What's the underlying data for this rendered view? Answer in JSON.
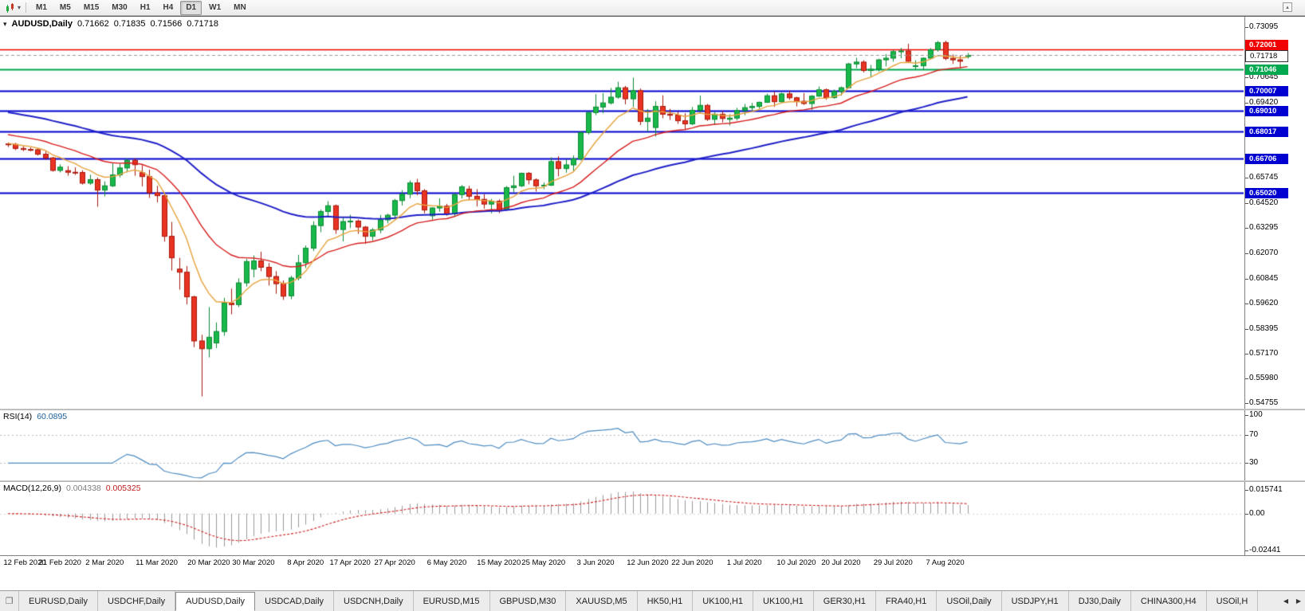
{
  "icons": {
    "collapse": "▾",
    "chart_type_caret": "▾",
    "windows": "❐",
    "tab_scroll_left": "◀",
    "tab_scroll_right": "▶",
    "corner": "▴"
  },
  "toolbar": {
    "timeframes": [
      "M1",
      "M5",
      "M15",
      "M30",
      "H1",
      "H4",
      "D1",
      "W1",
      "MN"
    ],
    "active_timeframe": "D1"
  },
  "chart": {
    "symbol": "AUDUSD,Daily",
    "open": "0.71662",
    "high": "0.71835",
    "low": "0.71566",
    "close": "0.71718"
  },
  "main_pane": {
    "axis_labels": [
      "0.73095",
      "0.70645",
      "0.69420",
      "0.65745",
      "0.64520",
      "0.63295",
      "0.62070",
      "0.60845",
      "0.59620",
      "0.58395",
      "0.57170",
      "0.55980",
      "0.54755"
    ],
    "hlines": [
      {
        "price": 0.72001,
        "label": "0.72001",
        "color": "#f00000",
        "style": "solid",
        "width": 1.4
      },
      {
        "price": 0.71718,
        "label": "0.71718",
        "color": "#999999",
        "style": "dashed",
        "width": 1,
        "current": true
      },
      {
        "price": 0.71046,
        "label": "0.71046",
        "color": "#00a84f",
        "style": "solid",
        "width": 2
      },
      {
        "price": 0.70007,
        "label": "0.70007",
        "color": "#0000d0",
        "style": "solid",
        "width": 2
      },
      {
        "price": 0.6901,
        "label": "0.69010",
        "color": "#0000d0",
        "style": "solid",
        "width": 2
      },
      {
        "price": 0.68017,
        "label": "0.68017",
        "color": "#0000d0",
        "style": "solid",
        "width": 2
      },
      {
        "price": 0.66706,
        "label": "0.66706",
        "color": "#0000d0",
        "style": "solid",
        "width": 2
      },
      {
        "price": 0.6502,
        "label": "0.65020",
        "color": "#0000d0",
        "style": "solid",
        "width": 2
      }
    ]
  },
  "chart_data": {
    "type": "candlestick",
    "symbol": "AUDUSD",
    "timeframe": "Daily",
    "price_range": [
      0.545,
      0.736
    ],
    "up_color": "#18b84b",
    "up_border": "#0c8a33",
    "down_color": "#ea3423",
    "down_border": "#a8170b",
    "candles": [
      [
        0.674,
        0.6748,
        0.6725,
        0.6738
      ],
      [
        0.6738,
        0.6745,
        0.671,
        0.6718
      ],
      [
        0.6718,
        0.673,
        0.6705,
        0.6713
      ],
      [
        0.6713,
        0.6723,
        0.6705,
        0.6712
      ],
      [
        0.6712,
        0.6719,
        0.6683,
        0.669
      ],
      [
        0.669,
        0.6703,
        0.6663,
        0.6672
      ],
      [
        0.6672,
        0.6677,
        0.6605,
        0.6611
      ],
      [
        0.6611,
        0.664,
        0.6601,
        0.6627
      ],
      [
        0.661,
        0.6632,
        0.6585,
        0.6602
      ],
      [
        0.6602,
        0.6626,
        0.6589,
        0.6601
      ],
      [
        0.6601,
        0.6612,
        0.6542,
        0.6549
      ],
      [
        0.6549,
        0.659,
        0.6541,
        0.6566
      ],
      [
        0.6566,
        0.6576,
        0.6434,
        0.6515
      ],
      [
        0.6515,
        0.6558,
        0.6485,
        0.6536
      ],
      [
        0.6536,
        0.6646,
        0.653,
        0.6589
      ],
      [
        0.6589,
        0.6645,
        0.6577,
        0.6623
      ],
      [
        0.6623,
        0.6668,
        0.6601,
        0.666
      ],
      [
        0.666,
        0.6671,
        0.6585,
        0.6639
      ],
      [
        0.66,
        0.6637,
        0.6533,
        0.6581
      ],
      [
        0.6581,
        0.6615,
        0.6477,
        0.6502
      ],
      [
        0.6502,
        0.6536,
        0.6455,
        0.6488
      ],
      [
        0.6488,
        0.6497,
        0.6264,
        0.629
      ],
      [
        0.629,
        0.636,
        0.6123,
        0.6185
      ],
      [
        0.613,
        0.6185,
        0.603,
        0.6115
      ],
      [
        0.6115,
        0.6145,
        0.5958,
        0.5995
      ],
      [
        0.5995,
        0.6,
        0.575,
        0.578
      ],
      [
        0.578,
        0.581,
        0.551,
        0.5742
      ],
      [
        0.5742,
        0.5945,
        0.57,
        0.5798
      ],
      [
        0.577,
        0.587,
        0.5745,
        0.5826
      ],
      [
        0.5826,
        0.599,
        0.5805,
        0.5964
      ],
      [
        0.5964,
        0.6035,
        0.591,
        0.5957
      ],
      [
        0.5957,
        0.6085,
        0.5945,
        0.6063
      ],
      [
        0.6063,
        0.618,
        0.6045,
        0.6167
      ],
      [
        0.613,
        0.6197,
        0.609,
        0.617
      ],
      [
        0.617,
        0.6215,
        0.612,
        0.6139
      ],
      [
        0.6139,
        0.616,
        0.605,
        0.6094
      ],
      [
        0.6094,
        0.612,
        0.601,
        0.6059
      ],
      [
        0.6059,
        0.6075,
        0.598,
        0.5998
      ],
      [
        0.6,
        0.6098,
        0.5983,
        0.6087
      ],
      [
        0.6087,
        0.62,
        0.6075,
        0.6161
      ],
      [
        0.6161,
        0.6245,
        0.6135,
        0.6232
      ],
      [
        0.6232,
        0.6363,
        0.6218,
        0.6342
      ],
      [
        0.6342,
        0.642,
        0.631,
        0.6411
      ],
      [
        0.6411,
        0.6461,
        0.6385,
        0.6439
      ],
      [
        0.6439,
        0.6445,
        0.6302,
        0.6323
      ],
      [
        0.6323,
        0.638,
        0.6265,
        0.6362
      ],
      [
        0.6362,
        0.6395,
        0.633,
        0.6364
      ],
      [
        0.6364,
        0.6372,
        0.6302,
        0.6335
      ],
      [
        0.6335,
        0.634,
        0.6253,
        0.629
      ],
      [
        0.629,
        0.633,
        0.627,
        0.6321
      ],
      [
        0.6321,
        0.6394,
        0.6305,
        0.637
      ],
      [
        0.637,
        0.64,
        0.6353,
        0.6393
      ],
      [
        0.6393,
        0.6472,
        0.6375,
        0.6464
      ],
      [
        0.6464,
        0.6515,
        0.644,
        0.6495
      ],
      [
        0.6495,
        0.6562,
        0.6475,
        0.655
      ],
      [
        0.655,
        0.657,
        0.649,
        0.6512
      ],
      [
        0.6512,
        0.652,
        0.6402,
        0.6418
      ],
      [
        0.639,
        0.6432,
        0.6372,
        0.6428
      ],
      [
        0.6428,
        0.6475,
        0.641,
        0.6437
      ],
      [
        0.6437,
        0.6448,
        0.639,
        0.6399
      ],
      [
        0.6399,
        0.65,
        0.6385,
        0.6493
      ],
      [
        0.6493,
        0.654,
        0.6475,
        0.6531
      ],
      [
        0.652,
        0.6536,
        0.6465,
        0.6485
      ],
      [
        0.6485,
        0.652,
        0.6435,
        0.647
      ],
      [
        0.647,
        0.6495,
        0.6425,
        0.6447
      ],
      [
        0.6447,
        0.6472,
        0.6402,
        0.6461
      ],
      [
        0.6461,
        0.647,
        0.6403,
        0.6414
      ],
      [
        0.642,
        0.6535,
        0.6415,
        0.6527
      ],
      [
        0.6527,
        0.6585,
        0.6505,
        0.6536
      ],
      [
        0.6536,
        0.66,
        0.653,
        0.6597
      ],
      [
        0.6597,
        0.6603,
        0.6543,
        0.6565
      ],
      [
        0.6565,
        0.6572,
        0.6508,
        0.6536
      ],
      [
        0.6536,
        0.6552,
        0.652,
        0.6539
      ],
      [
        0.6539,
        0.6675,
        0.6535,
        0.6654
      ],
      [
        0.6654,
        0.668,
        0.6582,
        0.662
      ],
      [
        0.662,
        0.6666,
        0.66,
        0.6638
      ],
      [
        0.6638,
        0.6684,
        0.6608,
        0.6667
      ],
      [
        0.6667,
        0.68,
        0.666,
        0.6796
      ],
      [
        0.6796,
        0.6897,
        0.6786,
        0.6893
      ],
      [
        0.6893,
        0.6983,
        0.688,
        0.692
      ],
      [
        0.692,
        0.6988,
        0.689,
        0.694
      ],
      [
        0.694,
        0.7013,
        0.6932,
        0.6968
      ],
      [
        0.6968,
        0.7043,
        0.696,
        0.7014
      ],
      [
        0.7014,
        0.7023,
        0.6933,
        0.696
      ],
      [
        0.696,
        0.7063,
        0.692,
        0.7
      ],
      [
        0.7,
        0.701,
        0.6832,
        0.685
      ],
      [
        0.685,
        0.691,
        0.68,
        0.6866
      ],
      [
        0.682,
        0.6948,
        0.6776,
        0.6923
      ],
      [
        0.6923,
        0.6977,
        0.6865,
        0.6885
      ],
      [
        0.6885,
        0.6911,
        0.6857,
        0.688
      ],
      [
        0.688,
        0.6898,
        0.6838,
        0.6853
      ],
      [
        0.6853,
        0.689,
        0.681,
        0.6838
      ],
      [
        0.6838,
        0.692,
        0.6832,
        0.6904
      ],
      [
        0.6904,
        0.6976,
        0.689,
        0.6928
      ],
      [
        0.6928,
        0.6935,
        0.6852,
        0.686
      ],
      [
        0.686,
        0.6895,
        0.6832,
        0.6885
      ],
      [
        0.6885,
        0.69,
        0.6845,
        0.6864
      ],
      [
        0.686,
        0.6885,
        0.683,
        0.6866
      ],
      [
        0.6866,
        0.6916,
        0.6855,
        0.6903
      ],
      [
        0.6903,
        0.6935,
        0.688,
        0.6917
      ],
      [
        0.6917,
        0.694,
        0.6902,
        0.6923
      ],
      [
        0.6923,
        0.6946,
        0.6912,
        0.6943
      ],
      [
        0.6943,
        0.6985,
        0.694,
        0.6975
      ],
      [
        0.6975,
        0.6995,
        0.6921,
        0.6946
      ],
      [
        0.6946,
        0.699,
        0.694,
        0.6984
      ],
      [
        0.6984,
        0.7,
        0.6955,
        0.6965
      ],
      [
        0.6965,
        0.697,
        0.6923,
        0.6948
      ],
      [
        0.6948,
        0.6988,
        0.693,
        0.6937
      ],
      [
        0.6937,
        0.6978,
        0.6906,
        0.6973
      ],
      [
        0.6973,
        0.702,
        0.697,
        0.7004
      ],
      [
        0.7004,
        0.701,
        0.6955,
        0.6966
      ],
      [
        0.6966,
        0.7005,
        0.696,
        0.6996
      ],
      [
        0.6996,
        0.702,
        0.6975,
        0.7014
      ],
      [
        0.7014,
        0.7135,
        0.701,
        0.713
      ],
      [
        0.713,
        0.716,
        0.711,
        0.7139
      ],
      [
        0.7139,
        0.7148,
        0.7088,
        0.7098
      ],
      [
        0.7098,
        0.7125,
        0.7064,
        0.7104
      ],
      [
        0.7104,
        0.7155,
        0.7093,
        0.715
      ],
      [
        0.715,
        0.7178,
        0.7118,
        0.7158
      ],
      [
        0.7158,
        0.7198,
        0.7141,
        0.719
      ],
      [
        0.719,
        0.7208,
        0.7158,
        0.7193
      ],
      [
        0.7193,
        0.7228,
        0.7135,
        0.7143
      ],
      [
        0.712,
        0.7148,
        0.7102,
        0.7121
      ],
      [
        0.7121,
        0.7162,
        0.71,
        0.7158
      ],
      [
        0.7158,
        0.7207,
        0.7153,
        0.7199
      ],
      [
        0.7199,
        0.7242,
        0.719,
        0.7234
      ],
      [
        0.7234,
        0.7243,
        0.7148,
        0.7157
      ],
      [
        0.7157,
        0.7176,
        0.713,
        0.715
      ],
      [
        0.715,
        0.7172,
        0.7109,
        0.7143
      ],
      [
        0.71662,
        0.71835,
        0.71566,
        0.71718
      ]
    ],
    "moving_averages": [
      {
        "name": "ema-slow",
        "period": 55,
        "seed": 0.69,
        "color": "#2020c8",
        "width": 2
      },
      {
        "name": "ema-mid",
        "period": 21,
        "seed": 0.679,
        "color": "#d81f1f",
        "width": 1.4
      },
      {
        "name": "ema-fast",
        "period": 8,
        "seed": 0.6745,
        "color": "#e8a33d",
        "width": 1.4
      }
    ],
    "date_ticks": [
      {
        "label": "12 Feb 2020",
        "i": 0
      },
      {
        "label": "21 Feb 2020",
        "i": 7
      },
      {
        "label": "2 Mar 2020",
        "i": 13
      },
      {
        "label": "11 Mar 2020",
        "i": 20
      },
      {
        "label": "20 Mar 2020",
        "i": 27
      },
      {
        "label": "30 Mar 2020",
        "i": 33
      },
      {
        "label": "8 Apr 2020",
        "i": 40
      },
      {
        "label": "17 Apr 2020",
        "i": 46
      },
      {
        "label": "27 Apr 2020",
        "i": 52
      },
      {
        "label": "6 May 2020",
        "i": 59
      },
      {
        "label": "15 May 2020",
        "i": 66
      },
      {
        "label": "25 May 2020",
        "i": 72
      },
      {
        "label": "3 Jun 2020",
        "i": 79
      },
      {
        "label": "12 Jun 2020",
        "i": 86
      },
      {
        "label": "22 Jun 2020",
        "i": 92
      },
      {
        "label": "1 Jul 2020",
        "i": 99
      },
      {
        "label": "10 Jul 2020",
        "i": 106
      },
      {
        "label": "20 Jul 2020",
        "i": 112
      },
      {
        "label": "29 Jul 2020",
        "i": 119
      },
      {
        "label": "7 Aug 2020",
        "i": 126
      }
    ],
    "indicators": {
      "rsi": {
        "label": "RSI(14)",
        "value": "60.0895",
        "period": 14,
        "color": "#4e8cc2",
        "levels": [
          70,
          30
        ],
        "axis_labels": [
          "100",
          "70",
          "30"
        ]
      },
      "macd": {
        "label": "MACD(12,26,9)",
        "value_main": "0.004338",
        "value_signal": "0.005325",
        "fast": 12,
        "slow": 26,
        "signal_period": 9,
        "hist_color": "#9a9a9a",
        "signal_color": "#d02020",
        "axis_labels": [
          "0.015741",
          "0.00",
          "-0.02441"
        ]
      }
    }
  },
  "tabs": {
    "items": [
      "EURUSD,Daily",
      "USDCHF,Daily",
      "AUDUSD,Daily",
      "USDCAD,Daily",
      "USDCNH,Daily",
      "EURUSD,M15",
      "GBPUSD,M30",
      "XAUUSD,M5",
      "HK50,H1",
      "UK100,H1",
      "UK100,H1",
      "GER30,H1",
      "FRA40,H1",
      "USOil,Daily",
      "USDJPY,H1",
      "DJ30,Daily",
      "CHINA300,H4",
      "USOil,H"
    ],
    "active": "AUDUSD,Daily"
  }
}
